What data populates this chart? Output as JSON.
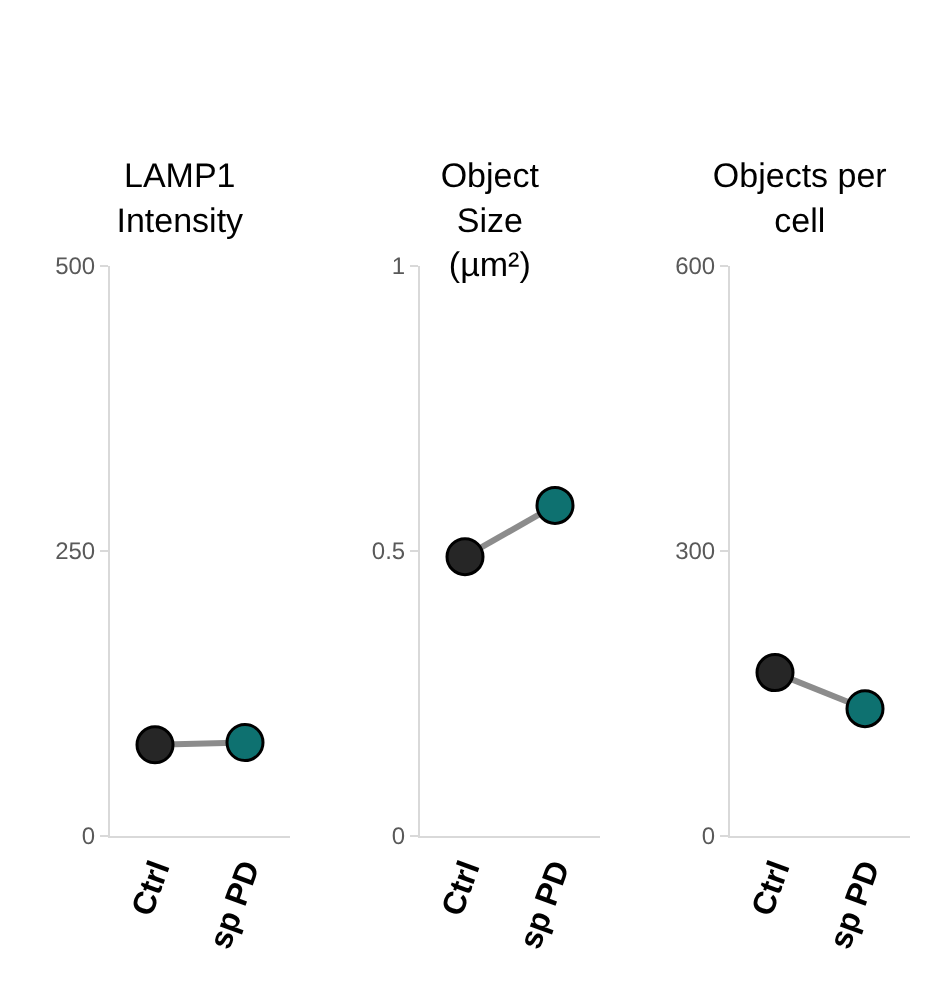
{
  "chart_data": [
    {
      "type": "line",
      "title": "LAMP1\nIntensity",
      "categories": [
        "Ctrl",
        "sp PD"
      ],
      "series": [
        {
          "color": "#8c8c8c",
          "colors": [
            "#262626",
            "#0e7170"
          ],
          "values": [
            80,
            82
          ]
        }
      ],
      "ylim": [
        0,
        500
      ],
      "yticks": [
        0,
        250,
        500
      ],
      "grid": false,
      "marker": "circle",
      "line_style": "solid"
    },
    {
      "type": "line",
      "title": "Object\nSize\n(µm²)",
      "categories": [
        "Ctrl",
        "sp PD"
      ],
      "series": [
        {
          "color": "#8c8c8c",
          "colors": [
            "#262626",
            "#0e7170"
          ],
          "values": [
            0.49,
            0.58
          ]
        }
      ],
      "ylim": [
        0,
        1
      ],
      "yticks": [
        0,
        0.5,
        1
      ],
      "grid": false,
      "marker": "circle",
      "line_style": "solid"
    },
    {
      "type": "line",
      "title": "Objects per\ncell",
      "categories": [
        "Ctrl",
        "sp PD"
      ],
      "series": [
        {
          "color": "#8c8c8c",
          "colors": [
            "#262626",
            "#0e7170"
          ],
          "values": [
            172,
            134
          ]
        }
      ],
      "ylim": [
        0,
        600
      ],
      "yticks": [
        0,
        300,
        600
      ],
      "grid": false,
      "marker": "circle",
      "line_style": "solid"
    }
  ]
}
